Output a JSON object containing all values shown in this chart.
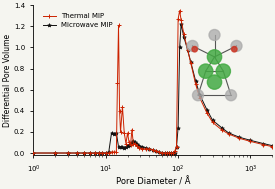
{
  "title": "",
  "xlabel": "Pore Diameter / Å",
  "ylabel": "Differential Pore Volume",
  "xlim_log": [
    1,
    2000
  ],
  "ylim": [
    -0.02,
    1.4
  ],
  "yticks": [
    0,
    0.2,
    0.4,
    0.6,
    0.8,
    1.0,
    1.2,
    1.4
  ],
  "thermal_color": "#cc2200",
  "microwave_color": "#111111",
  "legend_thermal": "Thermal MIP",
  "legend_microwave": "Microwave MIP",
  "thermal_x": [
    1.0,
    2.0,
    3.0,
    4.0,
    5.0,
    6.0,
    7.0,
    8.0,
    9.0,
    10.0,
    11.0,
    12.0,
    13.0,
    14.0,
    14.5,
    15.0,
    15.5,
    16.0,
    17.0,
    18.0,
    19.0,
    20.0,
    21.0,
    22.0,
    23.0,
    24.0,
    25.0,
    27.0,
    29.0,
    32.0,
    36.0,
    40.0,
    45.0,
    50.0,
    55.0,
    60.0,
    65.0,
    70.0,
    75.0,
    80.0,
    85.0,
    90.0,
    95.0,
    100.0,
    105.0,
    110.0,
    120.0,
    135.0,
    150.0,
    175.0,
    200.0,
    250.0,
    300.0,
    400.0,
    500.0,
    700.0,
    1000.0,
    1500.0,
    2000.0
  ],
  "thermal_y": [
    0.0,
    0.0,
    0.0,
    0.0,
    0.0,
    0.0,
    0.0,
    0.0,
    0.0,
    0.0,
    0.0,
    0.01,
    0.01,
    0.01,
    0.66,
    1.21,
    0.4,
    0.2,
    0.44,
    0.19,
    0.09,
    0.19,
    0.1,
    0.08,
    0.22,
    0.09,
    0.09,
    0.07,
    0.05,
    0.04,
    0.04,
    0.04,
    0.03,
    0.02,
    0.01,
    0.0,
    0.0,
    0.0,
    0.0,
    0.0,
    0.0,
    0.02,
    0.06,
    1.27,
    1.35,
    1.26,
    1.13,
    0.98,
    0.85,
    0.65,
    0.52,
    0.38,
    0.29,
    0.22,
    0.18,
    0.14,
    0.11,
    0.08,
    0.06
  ],
  "microwave_x": [
    1.0,
    2.0,
    3.0,
    4.0,
    5.0,
    6.0,
    7.0,
    8.0,
    9.0,
    10.0,
    11.0,
    12.0,
    13.0,
    14.0,
    15.0,
    16.0,
    17.0,
    18.0,
    19.0,
    20.0,
    21.0,
    22.0,
    23.0,
    24.0,
    25.0,
    27.0,
    29.0,
    32.0,
    36.0,
    40.0,
    45.0,
    50.0,
    55.0,
    60.0,
    65.0,
    70.0,
    75.0,
    80.0,
    85.0,
    90.0,
    95.0,
    100.0,
    105.0,
    110.0,
    120.0,
    135.0,
    150.0,
    175.0,
    200.0,
    250.0,
    300.0,
    400.0,
    500.0,
    700.0,
    1000.0,
    1500.0,
    2000.0
  ],
  "microwave_y": [
    0.0,
    0.0,
    0.0,
    0.0,
    0.0,
    0.0,
    0.0,
    0.0,
    0.0,
    0.0,
    0.01,
    0.19,
    0.18,
    0.19,
    0.06,
    0.06,
    0.06,
    0.05,
    0.06,
    0.07,
    0.08,
    0.09,
    0.1,
    0.11,
    0.1,
    0.09,
    0.07,
    0.06,
    0.05,
    0.04,
    0.03,
    0.02,
    0.01,
    0.0,
    0.0,
    0.0,
    0.0,
    0.0,
    0.0,
    0.0,
    0.06,
    0.24,
    1.0,
    1.22,
    1.1,
    0.98,
    0.86,
    0.68,
    0.55,
    0.41,
    0.31,
    0.24,
    0.19,
    0.15,
    0.12,
    0.09,
    0.07
  ],
  "bg_color": "#f5f5f0",
  "axes_bg": "#f5f5f0"
}
